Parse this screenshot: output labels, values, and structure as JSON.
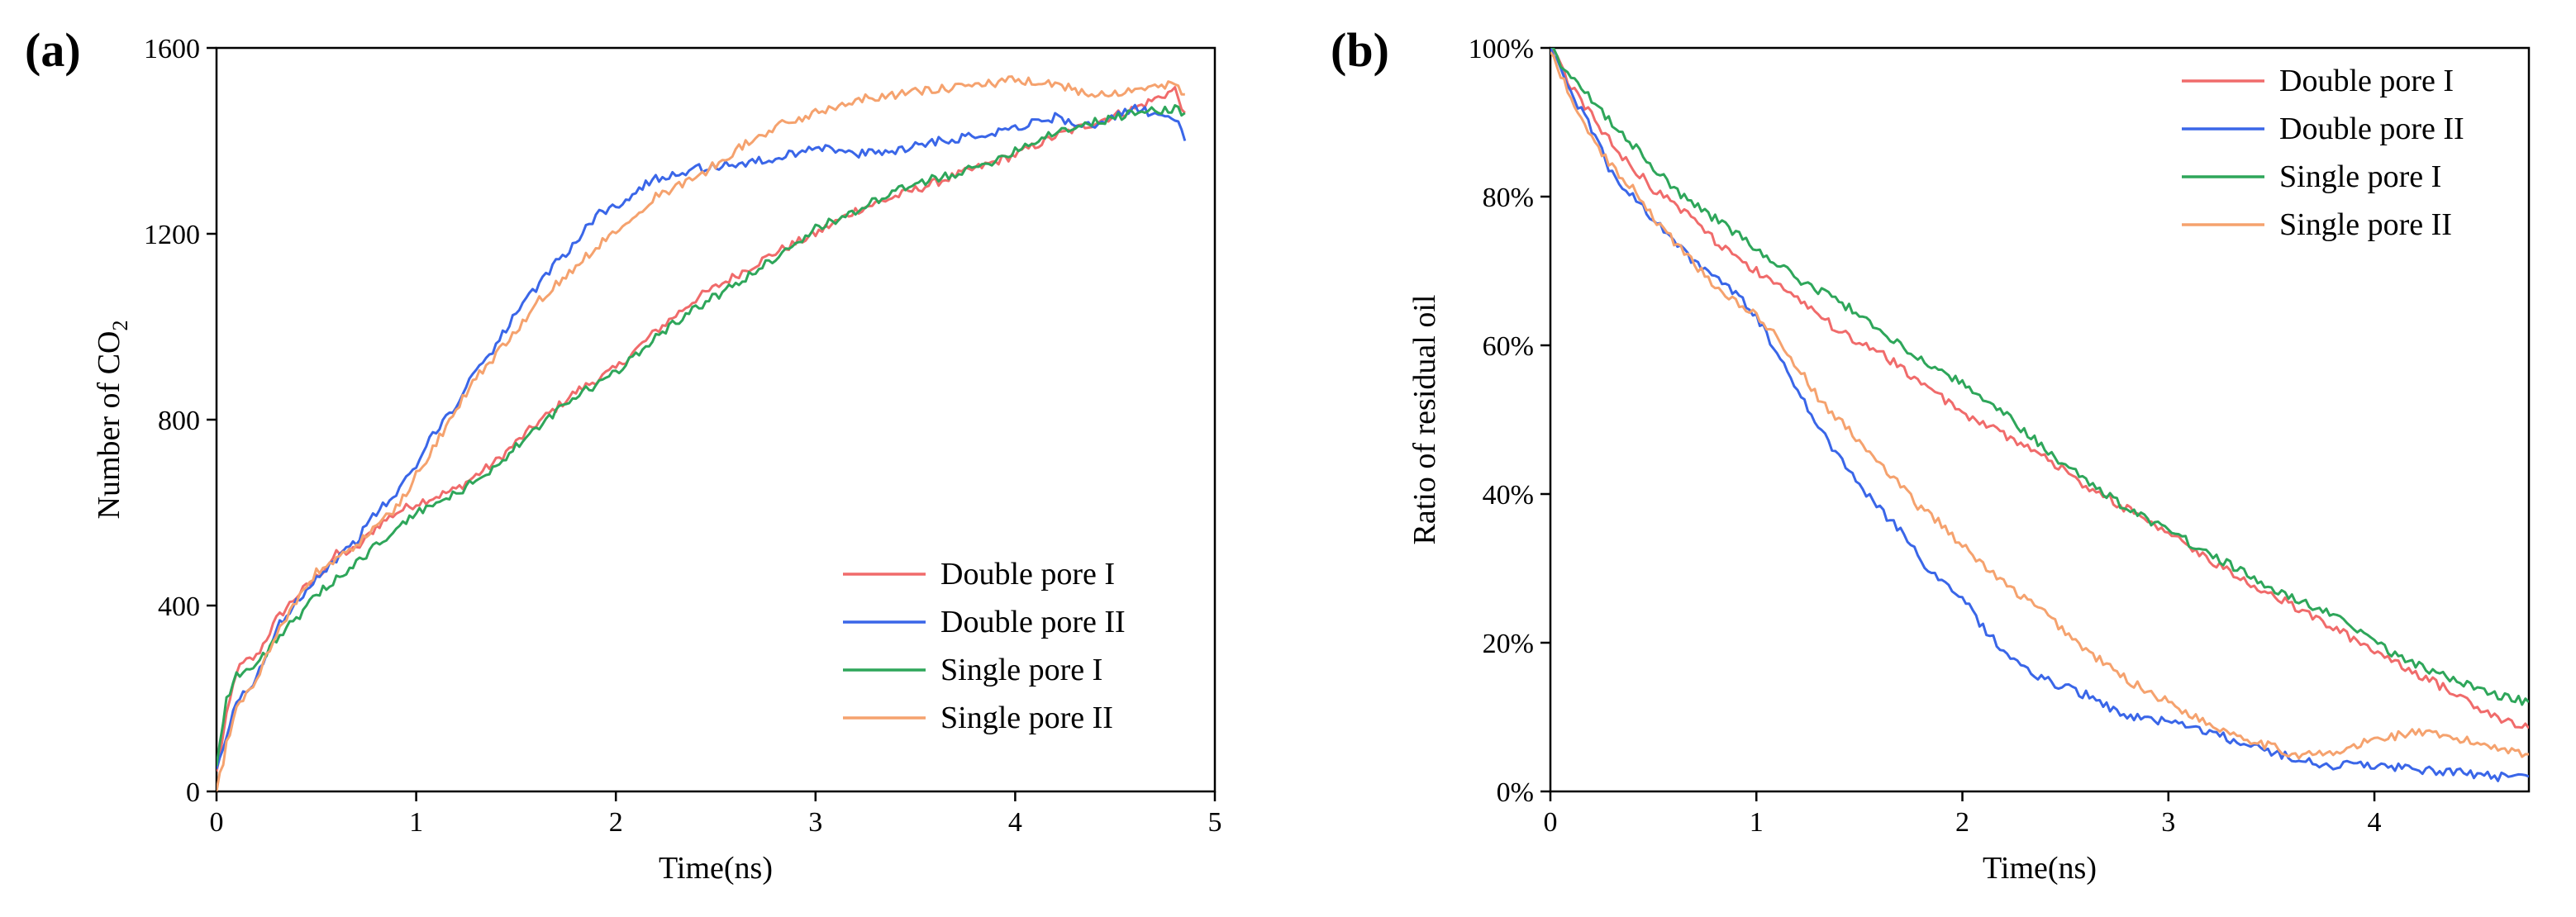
{
  "figure": {
    "panel_a_label": "(a)",
    "panel_b_label": "(b)"
  },
  "colors": {
    "double_pore_I": "#f06b6b",
    "double_pore_II": "#3a66e8",
    "single_pore_I": "#2ea65a",
    "single_pore_II": "#f5a26e",
    "axis": "#000000"
  },
  "chart_data": [
    {
      "panel": "(a)",
      "type": "line",
      "title": "",
      "xlabel": "Time(ns)",
      "ylabel_main": "Number of CO",
      "ylabel_sub": "2",
      "xlim": [
        0,
        5
      ],
      "ylim": [
        0,
        1600
      ],
      "xticks": [
        0,
        1,
        2,
        3,
        4,
        5
      ],
      "yticks": [
        0,
        400,
        800,
        1200,
        1600
      ],
      "xtick_labels": [
        "0",
        "1",
        "2",
        "3",
        "4",
        "5"
      ],
      "ytick_labels": [
        "0",
        "400",
        "800",
        "1200",
        "1600"
      ],
      "legend_position": "bottom-right",
      "series": [
        {
          "name": "Double pore I",
          "color_key": "double_pore_I",
          "x": [
            0,
            0.05,
            0.1,
            0.15,
            0.2,
            0.3,
            0.4,
            0.5,
            0.6,
            0.7,
            0.8,
            0.9,
            1.0,
            1.2,
            1.4,
            1.6,
            1.8,
            2.0,
            2.2,
            2.4,
            2.6,
            2.8,
            3.0,
            3.2,
            3.4,
            3.6,
            3.8,
            4.0,
            4.2,
            4.4,
            4.6,
            4.8,
            4.85
          ],
          "y": [
            40,
            160,
            260,
            280,
            290,
            370,
            420,
            460,
            510,
            520,
            570,
            600,
            620,
            650,
            710,
            790,
            860,
            910,
            990,
            1060,
            1110,
            1160,
            1200,
            1250,
            1280,
            1310,
            1340,
            1370,
            1410,
            1440,
            1470,
            1510,
            1460
          ]
        },
        {
          "name": "Double pore II",
          "color_key": "double_pore_II",
          "x": [
            0,
            0.05,
            0.1,
            0.15,
            0.2,
            0.3,
            0.4,
            0.5,
            0.6,
            0.7,
            0.8,
            0.9,
            1.0,
            1.1,
            1.2,
            1.3,
            1.4,
            1.5,
            1.6,
            1.7,
            1.8,
            1.9,
            2.0,
            2.2,
            2.4,
            2.6,
            2.8,
            3.0,
            3.2,
            3.4,
            3.6,
            3.8,
            4.0,
            4.2,
            4.4,
            4.6,
            4.8,
            4.85
          ],
          "y": [
            40,
            120,
            190,
            220,
            240,
            350,
            410,
            460,
            500,
            540,
            600,
            640,
            700,
            780,
            830,
            910,
            960,
            1030,
            1080,
            1140,
            1180,
            1240,
            1260,
            1320,
            1340,
            1350,
            1360,
            1390,
            1370,
            1380,
            1400,
            1410,
            1430,
            1450,
            1430,
            1470,
            1450,
            1400
          ]
        },
        {
          "name": "Single pore I",
          "color_key": "single_pore_I",
          "x": [
            0,
            0.05,
            0.1,
            0.15,
            0.2,
            0.3,
            0.4,
            0.5,
            0.6,
            0.7,
            0.8,
            0.9,
            1.0,
            1.2,
            1.4,
            1.6,
            1.8,
            2.0,
            2.2,
            2.4,
            2.6,
            2.8,
            3.0,
            3.2,
            3.4,
            3.6,
            3.8,
            4.0,
            4.2,
            4.4,
            4.6,
            4.8,
            4.85
          ],
          "y": [
            60,
            200,
            250,
            260,
            270,
            330,
            370,
            420,
            460,
            490,
            530,
            560,
            600,
            640,
            700,
            780,
            850,
            900,
            980,
            1040,
            1090,
            1150,
            1210,
            1250,
            1290,
            1320,
            1340,
            1380,
            1420,
            1440,
            1460,
            1470,
            1460
          ]
        },
        {
          "name": "Single pore II",
          "color_key": "single_pore_II",
          "x": [
            0,
            0.05,
            0.1,
            0.15,
            0.2,
            0.3,
            0.4,
            0.5,
            0.6,
            0.7,
            0.8,
            0.9,
            1.0,
            1.1,
            1.2,
            1.3,
            1.4,
            1.5,
            1.6,
            1.7,
            1.8,
            1.9,
            2.0,
            2.2,
            2.4,
            2.6,
            2.8,
            3.0,
            3.2,
            3.4,
            3.6,
            3.8,
            4.0,
            4.2,
            4.4,
            4.6,
            4.8,
            4.85
          ],
          "y": [
            0,
            100,
            180,
            210,
            240,
            340,
            410,
            470,
            500,
            530,
            570,
            610,
            680,
            750,
            820,
            890,
            940,
            990,
            1050,
            1090,
            1130,
            1170,
            1210,
            1280,
            1320,
            1380,
            1430,
            1460,
            1490,
            1500,
            1510,
            1520,
            1530,
            1520,
            1500,
            1510,
            1520,
            1500
          ]
        }
      ]
    },
    {
      "panel": "(b)",
      "type": "line",
      "title": "",
      "xlabel": "Time(ns)",
      "ylabel": "Ratio of residual oil",
      "xlim": [
        0,
        4.75
      ],
      "ylim": [
        0,
        100
      ],
      "xticks": [
        0,
        1,
        2,
        3,
        4
      ],
      "yticks": [
        0,
        20,
        40,
        60,
        80,
        100
      ],
      "xtick_labels": [
        "0",
        "1",
        "2",
        "3",
        "4"
      ],
      "ytick_labels": [
        "0%",
        "20%",
        "40%",
        "60%",
        "80%",
        "100%"
      ],
      "legend_position": "top-right",
      "series": [
        {
          "name": "Double pore I",
          "color_key": "double_pore_I",
          "x": [
            0,
            0.1,
            0.2,
            0.3,
            0.4,
            0.5,
            0.6,
            0.7,
            0.8,
            0.9,
            1.0,
            1.2,
            1.4,
            1.6,
            1.8,
            2.0,
            2.2,
            2.4,
            2.6,
            2.8,
            3.0,
            3.2,
            3.4,
            3.6,
            3.8,
            4.0,
            4.2,
            4.4,
            4.6,
            4.75
          ],
          "y": [
            100,
            95,
            91,
            87,
            84,
            81,
            79,
            77,
            74,
            72,
            70,
            66,
            62,
            59,
            55,
            51,
            48,
            45,
            41,
            38,
            35,
            31,
            28,
            25,
            22,
            19,
            16,
            13,
            10,
            8.5
          ]
        },
        {
          "name": "Double pore II",
          "color_key": "double_pore_II",
          "x": [
            0,
            0.1,
            0.2,
            0.3,
            0.4,
            0.5,
            0.6,
            0.7,
            0.8,
            0.9,
            1.0,
            1.1,
            1.2,
            1.3,
            1.4,
            1.5,
            1.6,
            1.7,
            1.8,
            1.9,
            2.0,
            2.1,
            2.2,
            2.4,
            2.6,
            2.8,
            3.0,
            3.2,
            3.4,
            3.6,
            3.8,
            4.0,
            4.2,
            4.4,
            4.6,
            4.75
          ],
          "y": [
            100,
            94,
            89,
            83,
            80,
            77,
            74,
            71,
            69,
            67,
            64,
            59,
            54,
            49,
            45,
            41,
            38,
            35,
            31,
            28,
            26,
            22,
            19,
            15,
            13,
            10,
            9.5,
            8,
            6,
            4.5,
            3.5,
            3.5,
            3,
            2.5,
            2,
            2
          ]
        },
        {
          "name": "Single pore I",
          "color_key": "single_pore_I",
          "x": [
            0,
            0.1,
            0.2,
            0.3,
            0.4,
            0.5,
            0.6,
            0.7,
            0.8,
            0.9,
            1.0,
            1.2,
            1.4,
            1.6,
            1.8,
            2.0,
            2.2,
            2.4,
            2.6,
            2.8,
            3.0,
            3.2,
            3.4,
            3.6,
            3.8,
            4.0,
            4.2,
            4.4,
            4.6,
            4.75
          ],
          "y": [
            100,
            96,
            93,
            90,
            87,
            84,
            81,
            79,
            77,
            75,
            73,
            69,
            66,
            62,
            58,
            55,
            51,
            46,
            42,
            38,
            35,
            32,
            29,
            26,
            24,
            20,
            17,
            15,
            13,
            12
          ]
        },
        {
          "name": "Single pore II",
          "color_key": "single_pore_II",
          "x": [
            0,
            0.1,
            0.2,
            0.3,
            0.4,
            0.5,
            0.6,
            0.7,
            0.8,
            0.9,
            1.0,
            1.1,
            1.2,
            1.3,
            1.4,
            1.5,
            1.6,
            1.7,
            1.8,
            1.9,
            2.0,
            2.2,
            2.4,
            2.6,
            2.8,
            3.0,
            3.2,
            3.4,
            3.6,
            3.8,
            4.0,
            4.2,
            4.4,
            4.6,
            4.75
          ],
          "y": [
            100,
            93,
            88,
            84,
            81,
            77,
            74,
            71,
            68,
            66,
            64,
            61,
            57,
            53,
            50,
            47,
            44,
            41,
            38,
            36,
            33,
            28,
            24,
            19,
            15,
            12,
            9,
            7,
            5,
            5,
            7,
            8,
            7,
            6,
            5
          ]
        }
      ]
    }
  ]
}
